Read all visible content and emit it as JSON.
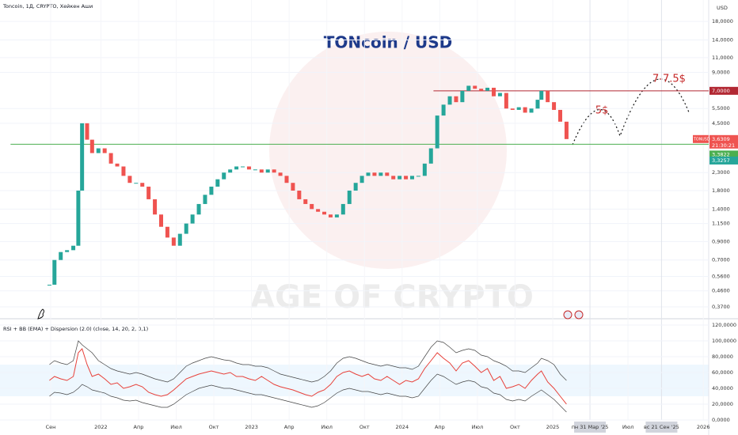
{
  "chart_data": [
    {
      "type": "line",
      "title": "TONcoin / USD",
      "subtitle": "Toncoin, 1Д, CRYPTO, Хейкен Аши",
      "y_unit": "USD",
      "watermark": "AGE OF CRYPTO",
      "annotations": [
        "5$",
        "7-7.5$"
      ],
      "log_scale": true,
      "x": [
        7.9,
        8.3,
        8.8,
        9.3,
        9.8,
        10.2,
        10.5,
        10.9,
        11.3,
        11.8,
        12.3,
        12.8,
        13.3,
        13.8,
        14.3,
        14.8,
        15.3,
        15.8,
        16.3,
        16.8,
        17.3,
        17.8,
        18.3,
        18.8,
        19.3,
        19.8,
        20.3,
        20.8,
        21.3,
        21.8,
        22.3,
        22.8,
        23.3,
        23.8,
        24.3,
        24.8,
        25.3,
        25.8,
        26.3,
        26.8,
        27.3,
        27.8,
        28.3,
        28.8,
        29.3,
        29.8,
        30.3,
        30.8,
        31.3,
        31.8,
        32.3,
        32.8,
        33.3,
        33.8,
        34.3,
        34.8,
        35.3,
        35.8,
        36.3,
        36.8,
        37.3,
        37.8,
        38.3,
        38.8,
        39.3,
        39.8,
        40.3,
        40.8,
        41.3,
        41.8,
        42.3,
        42.8,
        43.3,
        43.8,
        44.3,
        44.8,
        45.3,
        45.8,
        46.3,
        46.8,
        47.1,
        47.6,
        48.1,
        48.6,
        49.1
      ],
      "series": [
        {
          "up_color": "#26a69a",
          "down_color": "#ef5350",
          "values": [
            0.5,
            0.7,
            0.78,
            0.8,
            0.85,
            1.8,
            4.5,
            3.6,
            3.0,
            3.2,
            3.0,
            2.6,
            2.5,
            2.2,
            2.0,
            2.0,
            1.9,
            1.6,
            1.3,
            1.1,
            0.95,
            0.85,
            1.0,
            1.15,
            1.3,
            1.5,
            1.7,
            1.9,
            2.1,
            2.3,
            2.4,
            2.5,
            2.5,
            2.4,
            2.4,
            2.3,
            2.4,
            2.3,
            2.2,
            2.0,
            1.8,
            1.6,
            1.5,
            1.4,
            1.35,
            1.3,
            1.25,
            1.3,
            1.5,
            1.8,
            2.0,
            2.2,
            2.3,
            2.2,
            2.3,
            2.2,
            2.1,
            2.2,
            2.1,
            2.2,
            2.2,
            2.6,
            3.2,
            5.0,
            5.8,
            6.5,
            6.0,
            7.0,
            7.5,
            7.2,
            7.0,
            7.3,
            6.5,
            6.8,
            5.5,
            5.4,
            5.6,
            5.2,
            5.5,
            6.2,
            7.0,
            6.0,
            5.4,
            4.6,
            3.63
          ]
        }
      ],
      "xlim": [
        3.96,
        60.43
      ],
      "xticks": [
        {
          "value": 8,
          "label": "Сен"
        },
        {
          "value": 12,
          "label": "2022"
        },
        {
          "value": 15,
          "label": "Апр"
        },
        {
          "value": 18,
          "label": "Июл"
        },
        {
          "value": 21,
          "label": "Окт"
        },
        {
          "value": 24,
          "label": "2023"
        },
        {
          "value": 27,
          "label": "Апр"
        },
        {
          "value": 30,
          "label": "Июл"
        },
        {
          "value": 33,
          "label": "Окт"
        },
        {
          "value": 36,
          "label": "2024"
        },
        {
          "value": 39,
          "label": "Апр"
        },
        {
          "value": 42,
          "label": "Июл"
        },
        {
          "value": 45,
          "label": "Окт"
        },
        {
          "value": 48,
          "label": "2025"
        },
        {
          "value": 50.97,
          "label": "пн 31 Мар '25"
        },
        {
          "value": 54,
          "label": "Июл"
        },
        {
          "value": 56.67,
          "label": "вс 21 Сен '25"
        },
        {
          "value": 60,
          "label": "2026"
        }
      ],
      "ylim": [
        0.325,
        24.1
      ],
      "yticks": [
        {
          "value": 18,
          "label": "18,0000"
        },
        {
          "value": 14,
          "label": "14,0000"
        },
        {
          "value": 11,
          "label": "11,0000"
        },
        {
          "value": 9,
          "label": "9,0000"
        },
        {
          "value": 5.5,
          "label": "5,5000"
        },
        {
          "value": 4.5,
          "label": "4,5000"
        },
        {
          "value": 2.3,
          "label": "2,3000"
        },
        {
          "value": 1.8,
          "label": "1,8000"
        },
        {
          "value": 1.4,
          "label": "1,4000"
        },
        {
          "value": 1.15,
          "label": "1,1500"
        },
        {
          "value": 0.9,
          "label": "0,9000"
        },
        {
          "value": 0.7,
          "label": "0,7000"
        },
        {
          "value": 0.56,
          "label": "0,5600"
        },
        {
          "value": 0.46,
          "label": "0,4600"
        },
        {
          "value": 0.37,
          "label": "0,3700"
        }
      ],
      "levels": [
        {
          "value": 7,
          "label": "7,0000",
          "color": "#b22833",
          "from": 38.5
        },
        {
          "value": 3.3822,
          "label": "3,3822",
          "color": "#4caf50",
          "from": 4.8
        }
      ],
      "last_price": {
        "symbol": "TONUSD",
        "value": 3.6309,
        "label": "3,6309",
        "countdown": "21:30:21",
        "color": "#ef5350"
      },
      "badges": [
        {
          "value": 3.3257,
          "label": "3,3257",
          "color": "#26a69a"
        }
      ]
    },
    {
      "type": "line",
      "title": "RSI + BB (EMA) + Dispersion (2.0) (close, 14, 20, 2, 0,1)",
      "x": [
        7.9,
        8.3,
        8.8,
        9.3,
        9.8,
        10.2,
        10.5,
        10.9,
        11.3,
        11.8,
        12.3,
        12.8,
        13.3,
        13.8,
        14.3,
        14.8,
        15.3,
        15.8,
        16.3,
        16.8,
        17.3,
        17.8,
        18.3,
        18.8,
        19.3,
        19.8,
        20.3,
        20.8,
        21.3,
        21.8,
        22.3,
        22.8,
        23.3,
        23.8,
        24.3,
        24.8,
        25.3,
        25.8,
        26.3,
        26.8,
        27.3,
        27.8,
        28.3,
        28.8,
        29.3,
        29.8,
        30.3,
        30.8,
        31.3,
        31.8,
        32.3,
        32.8,
        33.3,
        33.8,
        34.3,
        34.8,
        35.3,
        35.8,
        36.3,
        36.8,
        37.3,
        37.8,
        38.3,
        38.8,
        39.3,
        39.8,
        40.3,
        40.8,
        41.3,
        41.8,
        42.3,
        42.8,
        43.3,
        43.8,
        44.3,
        44.8,
        45.3,
        45.8,
        46.3,
        46.8,
        47.1,
        47.6,
        48.1,
        48.6,
        49.1
      ],
      "xlim": [
        3.96,
        60.43
      ],
      "ylim": [
        -2,
        126
      ],
      "yticks": [
        {
          "value": 120,
          "label": "120,0000"
        },
        {
          "value": 100,
          "label": "100,0000"
        },
        {
          "value": 80,
          "label": "80,0000"
        },
        {
          "value": 60,
          "label": "60,0000"
        },
        {
          "value": 40,
          "label": "40,0000"
        },
        {
          "value": 20,
          "label": "20,0000"
        },
        {
          "value": 0,
          "label": "0,0000"
        }
      ],
      "band": [
        30,
        70
      ],
      "series": [
        {
          "color": "#e8413a",
          "width": 1,
          "values": [
            50,
            55,
            52,
            50,
            55,
            85,
            90,
            70,
            55,
            58,
            52,
            45,
            47,
            40,
            42,
            45,
            42,
            35,
            32,
            30,
            32,
            38,
            45,
            52,
            55,
            58,
            60,
            62,
            60,
            58,
            60,
            55,
            55,
            52,
            50,
            55,
            50,
            45,
            42,
            40,
            38,
            35,
            32,
            30,
            35,
            38,
            45,
            55,
            60,
            62,
            58,
            55,
            58,
            52,
            50,
            55,
            50,
            45,
            50,
            48,
            52,
            65,
            75,
            85,
            78,
            72,
            62,
            72,
            75,
            68,
            60,
            65,
            50,
            55,
            40,
            42,
            45,
            40,
            50,
            58,
            62,
            48,
            40,
            30,
            20
          ]
        },
        {
          "color": "#444444",
          "width": 0.7,
          "values": [
            70,
            75,
            72,
            70,
            75,
            100,
            95,
            90,
            85,
            75,
            70,
            65,
            62,
            60,
            58,
            60,
            58,
            55,
            52,
            50,
            48,
            52,
            60,
            68,
            72,
            75,
            78,
            80,
            78,
            76,
            75,
            72,
            70,
            70,
            68,
            68,
            66,
            62,
            58,
            56,
            54,
            52,
            50,
            48,
            50,
            55,
            62,
            72,
            78,
            80,
            78,
            75,
            72,
            70,
            68,
            70,
            68,
            66,
            66,
            64,
            68,
            80,
            92,
            100,
            98,
            92,
            85,
            88,
            90,
            88,
            82,
            80,
            75,
            72,
            68,
            62,
            62,
            60,
            66,
            72,
            78,
            75,
            70,
            58,
            50
          ]
        },
        {
          "color": "#444444",
          "width": 0.7,
          "values": [
            30,
            35,
            34,
            32,
            35,
            40,
            45,
            42,
            38,
            36,
            34,
            30,
            28,
            25,
            24,
            25,
            22,
            20,
            18,
            16,
            16,
            20,
            26,
            32,
            36,
            40,
            42,
            44,
            42,
            40,
            40,
            38,
            36,
            34,
            32,
            32,
            30,
            28,
            26,
            24,
            22,
            20,
            18,
            16,
            18,
            22,
            28,
            34,
            38,
            40,
            38,
            36,
            36,
            34,
            32,
            34,
            32,
            30,
            30,
            28,
            30,
            40,
            50,
            58,
            55,
            50,
            45,
            48,
            50,
            48,
            42,
            40,
            34,
            32,
            26,
            24,
            26,
            24,
            30,
            35,
            38,
            32,
            26,
            18,
            10
          ]
        }
      ]
    }
  ]
}
